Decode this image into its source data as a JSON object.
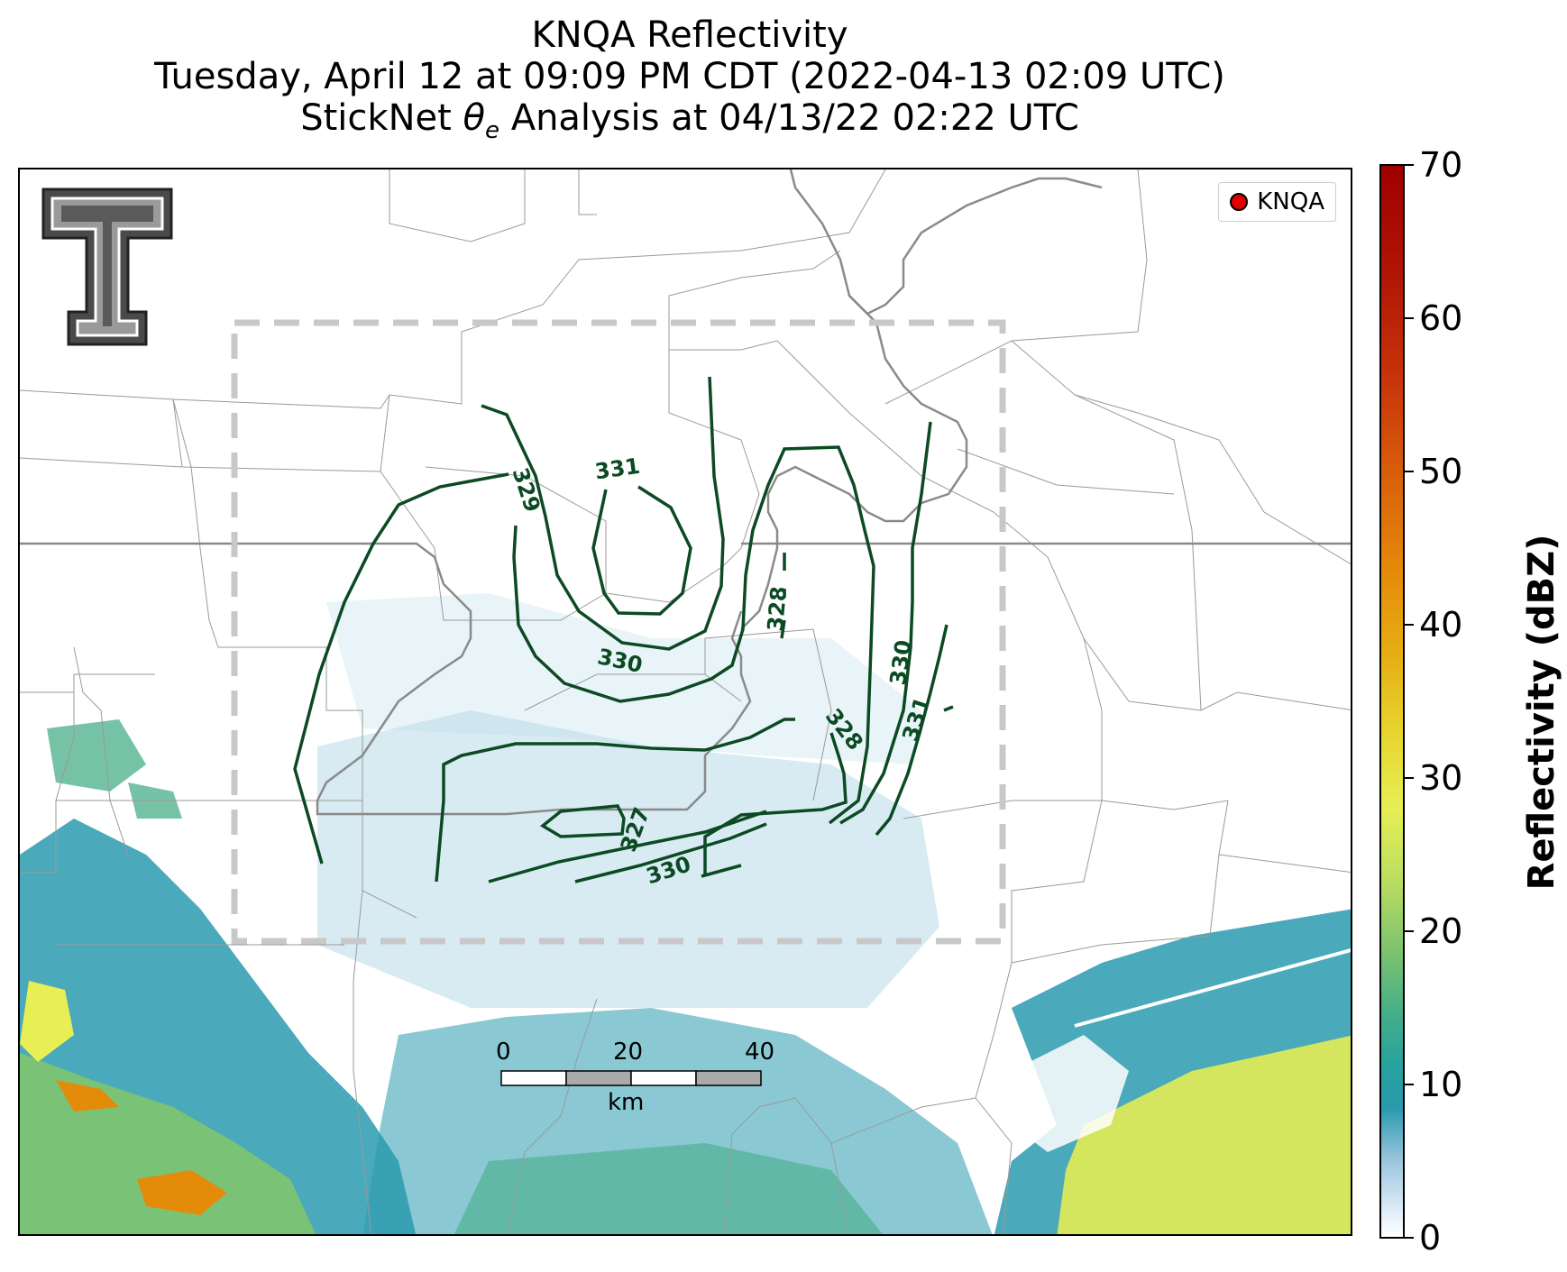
{
  "title": {
    "line1": "KNQA Reflectivity",
    "line2": "Tuesday, April 12 at 09:09 PM CDT (2022-04-13 02:09 UTC)",
    "line3_pre": "StickNet ",
    "line3_theta": "θ",
    "line3_sub": "e",
    "line3_post": " Analysis at 04/13/22 02:22 UTC"
  },
  "legend": {
    "label": "KNQA"
  },
  "logo": {
    "mark": "T"
  },
  "colorbar": {
    "label": "Reflectivity (dBZ)",
    "ticks": [
      "70",
      "60",
      "50",
      "40",
      "30",
      "20",
      "10",
      "0"
    ],
    "min": 0,
    "max": 70
  },
  "scale_bar": {
    "labels": [
      "0",
      "20",
      "40"
    ],
    "unit": "km"
  },
  "contours": {
    "labels": [
      "331",
      "329",
      "330",
      "328",
      "330",
      "331",
      "328",
      "327",
      "330"
    ],
    "color": "#0b4a22"
  },
  "colors": {
    "contour": "#0b4a22",
    "boundary": "#888888",
    "river": "#7a7a7a",
    "analysis_box": "#c8c8c8"
  }
}
